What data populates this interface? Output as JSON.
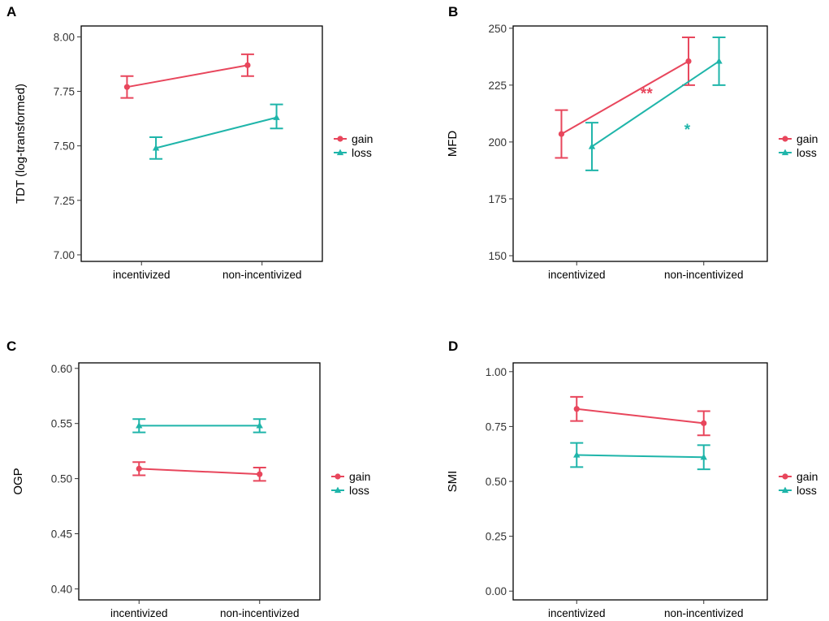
{
  "colors": {
    "gain": "#E8465C",
    "loss": "#1FB5AA",
    "axis": "#000000",
    "tick_text": "#333333"
  },
  "legend": {
    "labels": [
      "gain",
      "loss"
    ]
  },
  "chart_data": [
    {
      "panel": "A",
      "type": "line",
      "title": "",
      "xlabel": "",
      "ylabel": "TDT (log-transformed)",
      "categories": [
        "incentivized",
        "non-incentivized"
      ],
      "ylim": [
        6.97,
        8.05
      ],
      "yticks": [
        7.0,
        7.25,
        7.5,
        7.75,
        8.0
      ],
      "ytick_labels": [
        "7.00",
        "7.25",
        "7.50",
        "7.75",
        "8.00"
      ],
      "dodge": 0.12,
      "series": [
        {
          "name": "gain",
          "values": [
            7.77,
            7.87
          ],
          "lower": [
            7.72,
            7.82
          ],
          "upper": [
            7.82,
            7.92
          ]
        },
        {
          "name": "loss",
          "values": [
            7.49,
            7.63
          ],
          "lower": [
            7.44,
            7.58
          ],
          "upper": [
            7.54,
            7.69
          ]
        }
      ],
      "annotations": []
    },
    {
      "panel": "B",
      "type": "line",
      "title": "",
      "xlabel": "",
      "ylabel": "MFD",
      "categories": [
        "incentivized",
        "non-incentivized"
      ],
      "ylim": [
        147.5,
        251
      ],
      "yticks": [
        150,
        175,
        200,
        225,
        250
      ],
      "ytick_labels": [
        "150",
        "175",
        "200",
        "225",
        "250"
      ],
      "dodge": 0.12,
      "series": [
        {
          "name": "gain",
          "values": [
            203.5,
            235.5
          ],
          "lower": [
            193,
            225
          ],
          "upper": [
            214,
            246
          ]
        },
        {
          "name": "loss",
          "values": [
            198,
            235.5
          ],
          "lower": [
            187.5,
            225
          ],
          "upper": [
            208.5,
            246
          ]
        }
      ],
      "annotations": [
        {
          "text": "**",
          "series": "gain",
          "x": 1.05,
          "y": 222
        },
        {
          "text": "*",
          "series": "loss",
          "x": 1.37,
          "y": 206
        }
      ]
    },
    {
      "panel": "C",
      "type": "line",
      "title": "",
      "xlabel": "",
      "ylabel": "OGP",
      "categories": [
        "incentivized",
        "non-incentivized"
      ],
      "ylim": [
        0.39,
        0.605
      ],
      "yticks": [
        0.4,
        0.45,
        0.5,
        0.55,
        0.6
      ],
      "ytick_labels": [
        "0.40",
        "0.45",
        "0.50",
        "0.55",
        "0.60"
      ],
      "dodge": 0.0,
      "series": [
        {
          "name": "gain",
          "values": [
            0.509,
            0.504
          ],
          "lower": [
            0.503,
            0.498
          ],
          "upper": [
            0.515,
            0.51
          ]
        },
        {
          "name": "loss",
          "values": [
            0.548,
            0.548
          ],
          "lower": [
            0.542,
            0.542
          ],
          "upper": [
            0.554,
            0.554
          ]
        }
      ],
      "annotations": []
    },
    {
      "panel": "D",
      "type": "line",
      "title": "",
      "xlabel": "",
      "ylabel": "SMI",
      "categories": [
        "incentivized",
        "non-incentivized"
      ],
      "ylim": [
        -0.04,
        1.04
      ],
      "yticks": [
        0.0,
        0.25,
        0.5,
        0.75,
        1.0
      ],
      "ytick_labels": [
        "0.00",
        "0.25",
        "0.50",
        "0.75",
        "1.00"
      ],
      "dodge": 0.0,
      "series": [
        {
          "name": "gain",
          "values": [
            0.83,
            0.765
          ],
          "lower": [
            0.775,
            0.71
          ],
          "upper": [
            0.885,
            0.82
          ]
        },
        {
          "name": "loss",
          "values": [
            0.62,
            0.61
          ],
          "lower": [
            0.565,
            0.555
          ],
          "upper": [
            0.675,
            0.665
          ]
        }
      ],
      "annotations": []
    }
  ]
}
